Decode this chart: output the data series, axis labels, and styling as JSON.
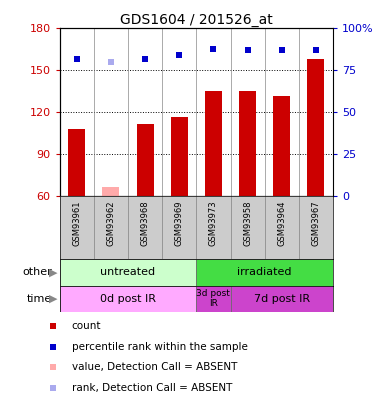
{
  "title": "GDS1604 / 201526_at",
  "samples": [
    "GSM93961",
    "GSM93962",
    "GSM93968",
    "GSM93969",
    "GSM93973",
    "GSM93958",
    "GSM93964",
    "GSM93967"
  ],
  "bar_values": [
    108,
    67,
    112,
    117,
    135,
    135,
    132,
    158
  ],
  "bar_absent": [
    false,
    true,
    false,
    false,
    false,
    false,
    false,
    false
  ],
  "rank_values": [
    82,
    80,
    82,
    84,
    88,
    87,
    87,
    87
  ],
  "rank_absent": [
    false,
    true,
    false,
    false,
    false,
    false,
    false,
    false
  ],
  "ylim_left": [
    60,
    180
  ],
  "ylim_right": [
    0,
    100
  ],
  "yticks_left": [
    60,
    90,
    120,
    150,
    180
  ],
  "yticks_right": [
    0,
    25,
    50,
    75,
    100
  ],
  "ytick_labels_right": [
    "0",
    "25",
    "50",
    "75",
    "100%"
  ],
  "bar_color_normal": "#cc0000",
  "bar_color_absent": "#ffaaaa",
  "rank_color_normal": "#0000cc",
  "rank_color_absent": "#aaaaee",
  "bar_width": 0.5,
  "group_other": [
    {
      "label": "untreated",
      "start": 0,
      "end": 4,
      "color": "#ccffcc"
    },
    {
      "label": "irradiated",
      "start": 4,
      "end": 8,
      "color": "#44dd44"
    }
  ],
  "group_time": [
    {
      "label": "0d post IR",
      "start": 0,
      "end": 4,
      "color": "#ffaaff"
    },
    {
      "label": "3d post\nIR",
      "start": 4,
      "end": 5,
      "color": "#cc44cc"
    },
    {
      "label": "7d post IR",
      "start": 5,
      "end": 8,
      "color": "#cc44cc"
    }
  ],
  "legend_items": [
    {
      "label": "count",
      "color": "#cc0000",
      "marker": "s"
    },
    {
      "label": "percentile rank within the sample",
      "color": "#0000cc",
      "marker": "s"
    },
    {
      "label": "value, Detection Call = ABSENT",
      "color": "#ffaaaa",
      "marker": "s"
    },
    {
      "label": "rank, Detection Call = ABSENT",
      "color": "#aaaaee",
      "marker": "s"
    }
  ],
  "ylabel_left_color": "#cc0000",
  "ylabel_right_color": "#0000cc",
  "base_value": 60,
  "sample_bg_color": "#cccccc",
  "fig_bg": "#ffffff"
}
